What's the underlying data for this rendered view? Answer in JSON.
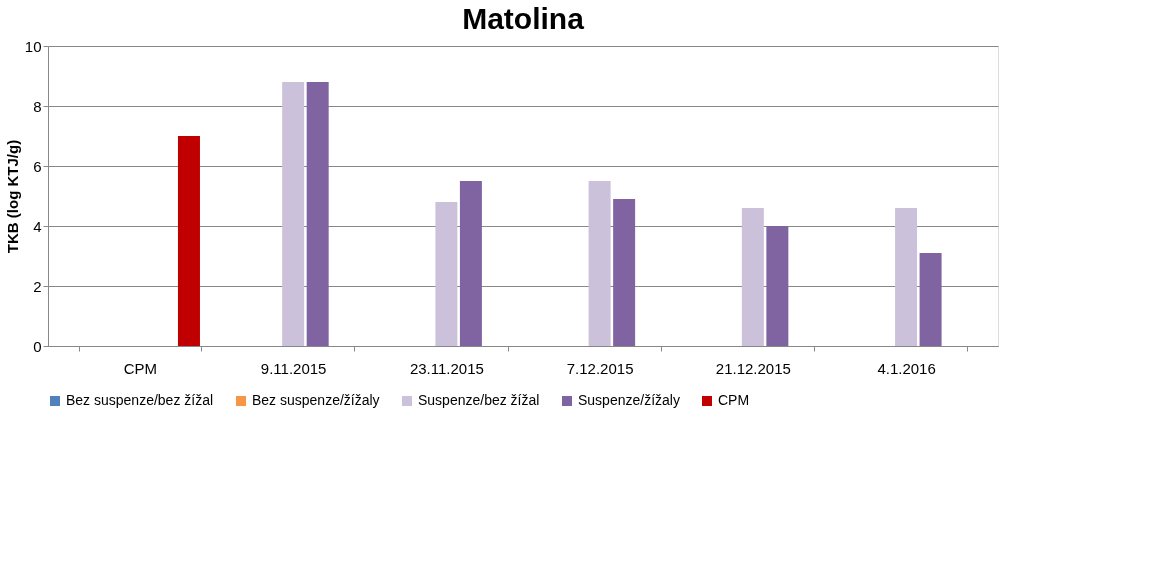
{
  "chart_data": {
    "type": "bar",
    "title": "Matolina",
    "ylabel": "TKB (log KTJ/g)",
    "categories": [
      "CPM",
      "9.11.2015",
      "23.11.2015",
      "7.12.2015",
      "21.12.2015",
      "4.1.2016"
    ],
    "series": [
      {
        "name": "Bez suspenze/bez žížal",
        "color": "#4f81bd",
        "values": [
          null,
          0,
          0,
          0,
          0,
          0
        ]
      },
      {
        "name": "Bez suspenze/žížaly",
        "color": "#f79646",
        "values": [
          null,
          0,
          0,
          0,
          0,
          0
        ]
      },
      {
        "name": "Suspenze/bez žížal",
        "color": "#ccc1da",
        "values": [
          null,
          8.8,
          4.8,
          5.5,
          4.6,
          4.6
        ]
      },
      {
        "name": "Suspenze/žížaly",
        "color": "#8064a2",
        "values": [
          null,
          8.8,
          5.5,
          4.9,
          4.0,
          3.1
        ]
      },
      {
        "name": "CPM",
        "color": "#c00000",
        "values": [
          7.0,
          null,
          null,
          null,
          null,
          null
        ]
      }
    ],
    "ylim": [
      0,
      10
    ],
    "yticks": [
      0,
      2,
      4,
      6,
      8,
      10
    ],
    "grid": "y",
    "legend": "bottom"
  }
}
